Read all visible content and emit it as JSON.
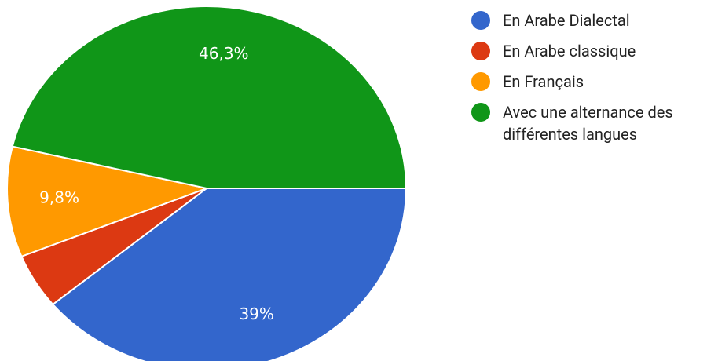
{
  "chart_data": {
    "type": "pie",
    "categories": [
      "En Arabe Dialectal",
      "En Arabe classique",
      "En Français",
      "Avec une alternance des différentes langues"
    ],
    "values": [
      39,
      4.9,
      9.8,
      46.3
    ],
    "value_labels": [
      "39%",
      null,
      "9,8%",
      "46,3%"
    ],
    "colors": [
      "#3366cc",
      "#dc3912",
      "#ff9900",
      "#109618"
    ],
    "legend": "right"
  }
}
